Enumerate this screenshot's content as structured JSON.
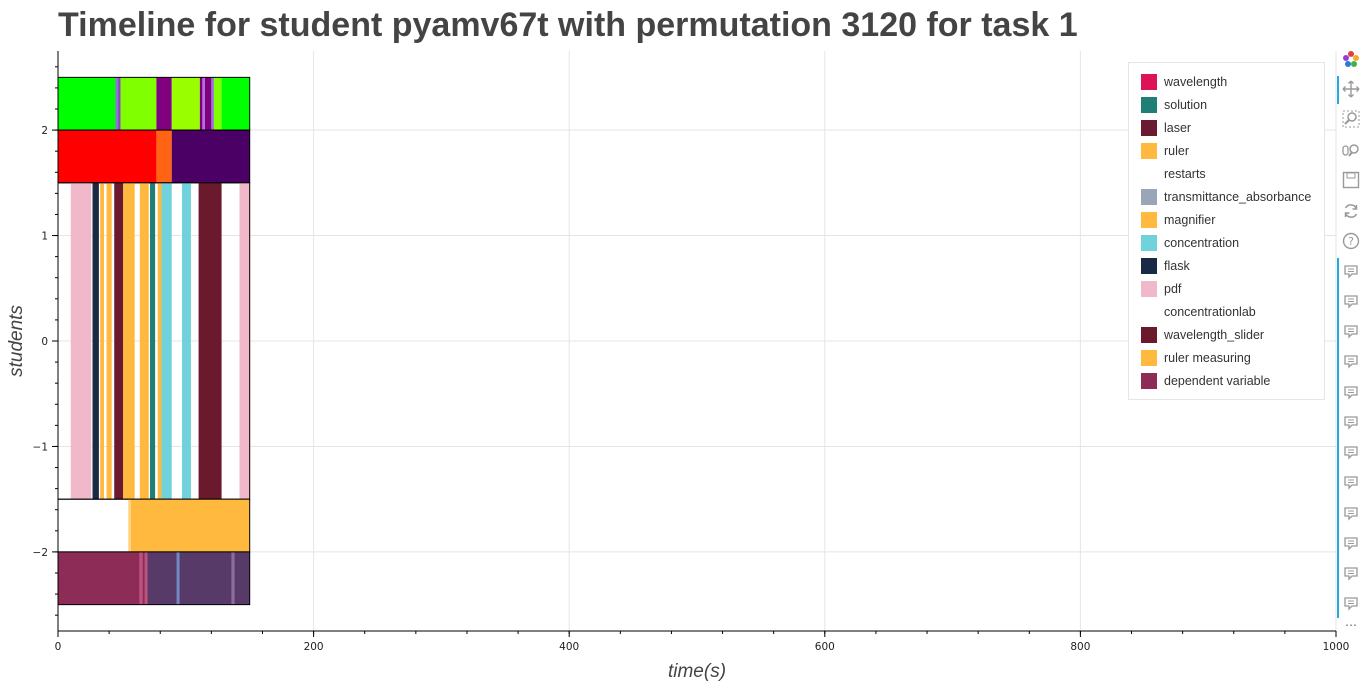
{
  "title": "Timeline for student pyamv67t with permutation 3120 for task 1",
  "chart_data": {
    "type": "timeline",
    "title": "Timeline for student pyamv67t with permutation 3120 for task 1",
    "xlabel": "time(s)",
    "ylabel": "students",
    "xlim": [
      0,
      1000
    ],
    "ylim": [
      -2.75,
      2.75
    ],
    "x_ticks": [
      0,
      200,
      400,
      600,
      800,
      1000
    ],
    "y_ticks": [
      -2,
      -1,
      0,
      1,
      2
    ],
    "grid": true,
    "legend_position": "top-right",
    "legend": [
      {
        "label": "wavelength",
        "color": "#dc1455"
      },
      {
        "label": "solution",
        "color": "#1f7f77"
      },
      {
        "label": "laser",
        "color": "#6b1a33"
      },
      {
        "label": "ruler",
        "color": "#ffb93f"
      },
      {
        "label": "restarts",
        "color": "#ffffff"
      },
      {
        "label": "transmittance_absorbance",
        "color": "#9aa6b8"
      },
      {
        "label": "magnifier",
        "color": "#ffb93f"
      },
      {
        "label": "concentration",
        "color": "#6fd2dc"
      },
      {
        "label": "flask",
        "color": "#1b2a44"
      },
      {
        "label": "pdf",
        "color": "#f0b8c8"
      },
      {
        "label": "concentrationlab",
        "color": "#ffffff"
      },
      {
        "label": "wavelength_slider",
        "color": "#6b1a2d"
      },
      {
        "label": "ruler measuring",
        "color": "#ffb93f"
      },
      {
        "label": "dependent variable",
        "color": "#8e2c58"
      }
    ],
    "rows": [
      {
        "y0": 2.0,
        "y1": 2.5,
        "segments": [
          {
            "start": 0,
            "end": 45,
            "color": "#00ff00"
          },
          {
            "start": 45,
            "end": 47,
            "color": "#9370db"
          },
          {
            "start": 47,
            "end": 49,
            "color": "#7a4fb0"
          },
          {
            "start": 49,
            "end": 77,
            "color": "#7fff00"
          },
          {
            "start": 77,
            "end": 89,
            "color": "#800080"
          },
          {
            "start": 89,
            "end": 111,
            "color": "#99ff00"
          },
          {
            "start": 111,
            "end": 113,
            "color": "#800080"
          },
          {
            "start": 113,
            "end": 115,
            "color": "#b070e0"
          },
          {
            "start": 115,
            "end": 120,
            "color": "#800080"
          },
          {
            "start": 120,
            "end": 122,
            "color": "#9370db"
          },
          {
            "start": 122,
            "end": 128,
            "color": "#7fff00"
          },
          {
            "start": 128,
            "end": 150,
            "color": "#00ff00"
          }
        ]
      },
      {
        "y0": 1.5,
        "y1": 2.0,
        "segments": [
          {
            "start": 0,
            "end": 77,
            "color": "#ff0000"
          },
          {
            "start": 77,
            "end": 89,
            "color": "#ff6314"
          },
          {
            "start": 89,
            "end": 150,
            "color": "#4b0066"
          }
        ]
      },
      {
        "y0": -1.5,
        "y1": 1.5,
        "segments": [
          {
            "start": 10,
            "end": 26,
            "color": "#f0b8c8"
          },
          {
            "start": 27,
            "end": 32,
            "color": "#1b2a44"
          },
          {
            "start": 33,
            "end": 36,
            "color": "#ffb93f"
          },
          {
            "start": 38,
            "end": 42,
            "color": "#ffb93f"
          },
          {
            "start": 44,
            "end": 51,
            "color": "#6b1a2d"
          },
          {
            "start": 51,
            "end": 60,
            "color": "#ffb93f"
          },
          {
            "start": 64,
            "end": 71,
            "color": "#ffb93f"
          },
          {
            "start": 72,
            "end": 76,
            "color": "#1f7f77"
          },
          {
            "start": 78,
            "end": 81,
            "color": "#ffb93f"
          },
          {
            "start": 81,
            "end": 89,
            "color": "#6fd2dc"
          },
          {
            "start": 97,
            "end": 104,
            "color": "#6fd2dc"
          },
          {
            "start": 110,
            "end": 128,
            "color": "#6b1a2d"
          },
          {
            "start": 142,
            "end": 150,
            "color": "#f0b8c8"
          }
        ]
      },
      {
        "y0": -2.0,
        "y1": -1.5,
        "segments": [
          {
            "start": 55,
            "end": 57,
            "color": "#ffd280"
          },
          {
            "start": 57,
            "end": 150,
            "color": "#ffb93f"
          }
        ]
      },
      {
        "y0": -2.5,
        "y1": -2.0,
        "segments": [
          {
            "start": 0,
            "end": 64,
            "color": "#8e2c58"
          },
          {
            "start": 64,
            "end": 66,
            "color": "#c0507e"
          },
          {
            "start": 66,
            "end": 68,
            "color": "#8e2c58"
          },
          {
            "start": 68,
            "end": 70,
            "color": "#c0507e"
          },
          {
            "start": 70,
            "end": 93,
            "color": "#583a68"
          },
          {
            "start": 93,
            "end": 95,
            "color": "#6a8acb"
          },
          {
            "start": 95,
            "end": 136,
            "color": "#583a68"
          },
          {
            "start": 136,
            "end": 138,
            "color": "#8e6aa0"
          },
          {
            "start": 138,
            "end": 150,
            "color": "#583a68"
          }
        ]
      }
    ]
  },
  "toolbar": {
    "tools": [
      {
        "icon": "bokeh-logo-icon"
      },
      {
        "icon": "pan-icon"
      },
      {
        "icon": "box-zoom-icon"
      },
      {
        "icon": "wheel-zoom-icon"
      },
      {
        "icon": "save-icon"
      },
      {
        "icon": "reset-icon"
      },
      {
        "icon": "help-icon"
      },
      {
        "icon": "hover-icon"
      },
      {
        "icon": "hover-icon"
      },
      {
        "icon": "hover-icon"
      },
      {
        "icon": "hover-icon"
      },
      {
        "icon": "hover-icon"
      },
      {
        "icon": "hover-icon"
      },
      {
        "icon": "hover-icon"
      },
      {
        "icon": "hover-icon"
      },
      {
        "icon": "hover-icon"
      },
      {
        "icon": "hover-icon"
      },
      {
        "icon": "hover-icon"
      },
      {
        "icon": "hover-icon"
      }
    ],
    "more_label": "⋯"
  }
}
